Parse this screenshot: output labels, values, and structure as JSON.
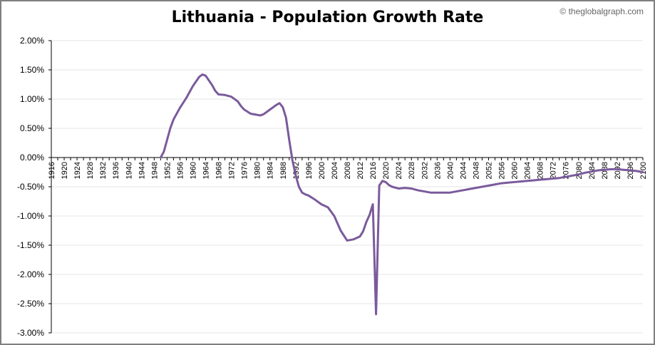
{
  "title": "Lithuania - Population Growth Rate",
  "credit": "© theglobalgraph.com",
  "chart_data": {
    "type": "line",
    "title": "Lithuania - Population Growth Rate",
    "xlabel": "",
    "ylabel": "",
    "ylim": [
      -3.0,
      2.0
    ],
    "xlim": [
      1916,
      2100
    ],
    "y_ticks": [
      "2.00%",
      "1.50%",
      "1.00%",
      "0.50%",
      "0.00%",
      "-0.50%",
      "-1.00%",
      "-1.50%",
      "-2.00%",
      "-2.50%",
      "-3.00%"
    ],
    "x_ticks": [
      "1916",
      "1920",
      "1924",
      "1928",
      "1932",
      "1936",
      "1940",
      "1944",
      "1948",
      "1952",
      "1956",
      "1960",
      "1964",
      "1968",
      "1972",
      "1976",
      "1980",
      "1984",
      "1988",
      "1992",
      "1996",
      "2000",
      "2004",
      "2008",
      "2012",
      "2016",
      "2020",
      "2024",
      "2028",
      "2032",
      "2036",
      "2040",
      "2044",
      "2048",
      "2052",
      "2056",
      "2060",
      "2064",
      "2068",
      "2072",
      "2076",
      "2080",
      "2084",
      "2088",
      "2092",
      "2096",
      "2100"
    ],
    "grid": "horizontal",
    "line_color": "#7a5a9c",
    "series": [
      {
        "x": [
          1950,
          1951,
          1952,
          1953,
          1954,
          1956,
          1958,
          1960,
          1962,
          1963,
          1964,
          1965,
          1966,
          1967,
          1968,
          1970,
          1972,
          1974,
          1975,
          1976,
          1978,
          1980,
          1981,
          1982,
          1984,
          1986,
          1987,
          1988,
          1989,
          1990,
          1991,
          1992,
          1993,
          1994,
          1995,
          1996,
          1998,
          2000,
          2002,
          2004,
          2006,
          2008,
          2010,
          2012,
          2013,
          2014,
          2015,
          2016,
          2017,
          2018,
          2019,
          2020,
          2021,
          2022,
          2024,
          2026,
          2028,
          2030,
          2032,
          2034,
          2036,
          2038,
          2040,
          2042,
          2044,
          2046,
          2048,
          2050,
          2052,
          2054,
          2056,
          2058,
          2060,
          2062,
          2064,
          2066,
          2068,
          2070,
          2072,
          2074,
          2076,
          2078,
          2080,
          2082,
          2084,
          2086,
          2088,
          2090,
          2092,
          2094,
          2096,
          2098,
          2100
        ],
        "y": [
          0.0,
          0.1,
          0.3,
          0.5,
          0.65,
          0.85,
          1.02,
          1.22,
          1.38,
          1.42,
          1.4,
          1.32,
          1.24,
          1.14,
          1.08,
          1.07,
          1.04,
          0.96,
          0.88,
          0.82,
          0.75,
          0.73,
          0.72,
          0.74,
          0.82,
          0.9,
          0.93,
          0.86,
          0.68,
          0.3,
          -0.05,
          -0.3,
          -0.5,
          -0.6,
          -0.63,
          -0.65,
          -0.72,
          -0.8,
          -0.85,
          -1.0,
          -1.25,
          -1.42,
          -1.4,
          -1.35,
          -1.26,
          -1.1,
          -0.98,
          -0.8,
          -2.68,
          -0.48,
          -0.4,
          -0.42,
          -0.47,
          -0.5,
          -0.53,
          -0.52,
          -0.53,
          -0.56,
          -0.58,
          -0.6,
          -0.6,
          -0.6,
          -0.6,
          -0.58,
          -0.56,
          -0.54,
          -0.52,
          -0.5,
          -0.48,
          -0.46,
          -0.44,
          -0.43,
          -0.42,
          -0.41,
          -0.4,
          -0.39,
          -0.38,
          -0.37,
          -0.36,
          -0.35,
          -0.33,
          -0.31,
          -0.29,
          -0.26,
          -0.24,
          -0.22,
          -0.21,
          -0.2,
          -0.2,
          -0.21,
          -0.22,
          -0.23,
          -0.25
        ]
      }
    ]
  }
}
